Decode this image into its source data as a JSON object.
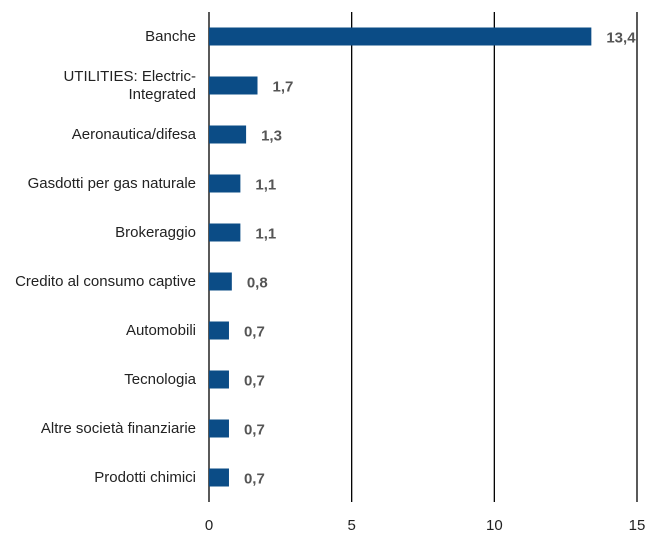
{
  "chart_data": {
    "type": "bar",
    "orientation": "horizontal",
    "categories": [
      "Banche",
      "UTILITIES: Electric-Integrated",
      "Aeronautica/difesa",
      "Gasdotti per gas naturale",
      "Brokeraggio",
      "Credito al consumo captive",
      "Automobili",
      "Tecnologia",
      "Altre società finanziarie",
      "Prodotti chimici"
    ],
    "values": [
      13.4,
      1.7,
      1.3,
      1.1,
      1.1,
      0.8,
      0.7,
      0.7,
      0.7,
      0.7
    ],
    "value_labels": [
      "13,4",
      "1,7",
      "1,3",
      "1,1",
      "1,1",
      "0,8",
      "0,7",
      "0,7",
      "0,7",
      "0,7"
    ],
    "color": "#0b4c86",
    "xlim": [
      0,
      15
    ],
    "xticks": [
      0,
      5,
      10,
      15
    ],
    "grid": true
  }
}
